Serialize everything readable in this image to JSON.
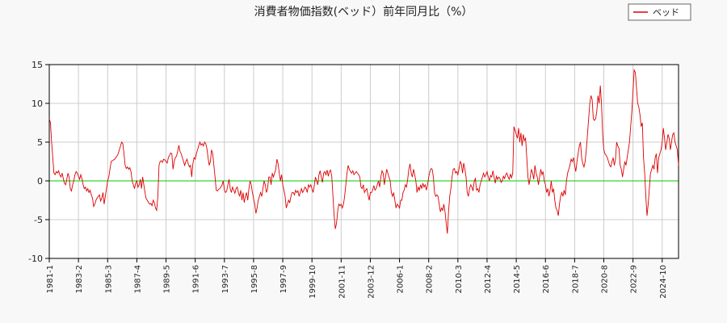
{
  "chart_data": {
    "type": "line",
    "title": "消費者物価指数(ベッド）前年同月比（%）",
    "x": [
      "1981-1",
      null,
      null,
      null,
      null,
      null,
      null,
      null,
      null,
      null,
      null,
      null,
      null,
      null,
      null,
      null,
      null,
      null,
      null,
      null,
      null,
      null,
      null,
      null,
      null,
      "1983-2",
      null,
      null,
      null,
      null,
      null,
      null,
      null,
      null,
      null,
      null,
      null,
      null,
      null,
      null,
      null,
      null,
      null,
      null,
      null,
      null,
      null,
      null,
      null,
      null,
      "1985-3",
      null,
      null,
      null,
      null,
      null,
      null,
      null,
      null,
      null,
      null,
      null,
      null,
      null,
      null,
      null,
      null,
      null,
      null,
      null,
      null,
      null,
      null,
      null,
      null,
      "1987-4",
      null,
      null,
      null,
      null,
      null,
      null,
      null,
      null,
      null,
      null,
      null,
      null,
      null,
      null,
      null,
      null,
      null,
      null,
      null,
      null,
      null,
      null,
      null,
      null,
      "1989-5",
      null,
      null,
      null,
      null,
      null,
      null,
      null,
      null,
      null,
      null,
      null,
      null,
      null,
      null,
      null,
      null,
      null,
      null,
      null,
      null,
      null,
      null,
      null,
      null,
      "1991-6",
      null,
      null,
      null,
      null,
      null,
      null,
      null,
      null,
      null,
      null,
      null,
      null,
      null,
      null,
      null,
      null,
      null,
      null,
      null,
      null,
      null,
      null,
      null,
      null,
      "1993-7",
      null,
      null,
      null,
      null,
      null,
      null,
      null,
      null,
      null,
      null,
      null,
      null,
      null,
      null,
      null,
      null,
      null,
      null,
      null,
      null,
      null,
      null,
      null,
      null,
      "1995-8",
      null,
      null,
      null,
      null,
      null,
      null,
      null,
      null,
      null,
      null,
      null,
      null,
      null,
      null,
      null,
      null,
      null,
      null,
      null,
      null,
      null,
      null,
      null,
      null,
      "1997-9",
      null,
      null,
      null,
      null,
      null,
      null,
      null,
      null,
      null,
      null,
      null,
      null,
      null,
      null,
      null,
      null,
      null,
      null,
      null,
      null,
      null,
      null,
      null,
      null,
      "1999-10",
      null,
      null,
      null,
      null,
      null,
      null,
      null,
      null,
      null,
      null,
      null,
      null,
      null,
      null,
      null,
      null,
      null,
      null,
      null,
      null,
      null,
      null,
      null,
      null,
      "2001-11",
      null,
      null,
      null,
      null,
      null,
      null,
      null,
      null,
      null,
      null,
      null,
      null,
      null,
      null,
      null,
      null,
      null,
      null,
      null,
      null,
      null,
      null,
      null,
      null,
      "2003-12",
      null,
      null,
      null,
      null,
      null,
      null,
      null,
      null,
      null,
      null,
      null,
      null,
      null,
      null,
      null,
      null,
      null,
      null,
      null,
      null,
      null,
      null,
      null,
      null,
      "2006-1",
      null,
      null,
      null,
      null,
      null,
      null,
      null,
      null,
      null,
      null,
      null,
      null,
      null,
      null,
      null,
      null,
      null,
      null,
      null,
      null,
      null,
      null,
      null,
      null,
      "2008-2",
      null,
      null,
      null,
      null,
      null,
      null,
      null,
      null,
      null,
      null,
      null,
      null,
      null,
      null,
      null,
      null,
      null,
      null,
      null,
      null,
      null,
      null,
      null,
      null,
      "2010-3",
      null,
      null,
      null,
      null,
      null,
      null,
      null,
      null,
      null,
      null,
      null,
      null,
      null,
      null,
      null,
      null,
      null,
      null,
      null,
      null,
      null,
      null,
      null,
      null,
      "2012-4",
      null,
      null,
      null,
      null,
      null,
      null,
      null,
      null,
      null,
      null,
      null,
      null,
      null,
      null,
      null,
      null,
      null,
      null,
      null,
      null,
      null,
      null,
      null,
      null,
      "2014-5",
      null,
      null,
      null,
      null,
      null,
      null,
      null,
      null,
      null,
      null,
      null,
      null,
      null,
      null,
      null,
      null,
      null,
      null,
      null,
      null,
      null,
      null,
      null,
      null,
      "2016-6",
      null,
      null,
      null,
      null,
      null,
      null,
      null,
      null,
      null,
      null,
      null,
      null,
      null,
      null,
      null,
      null,
      null,
      null,
      null,
      null,
      null,
      null,
      null,
      null,
      "2018-7",
      null,
      null,
      null,
      null,
      null,
      null,
      null,
      null,
      null,
      null,
      null,
      null,
      null,
      null,
      null,
      null,
      null,
      null,
      null,
      null,
      null,
      null,
      null,
      null,
      "2020-8",
      null,
      null,
      null,
      null,
      null,
      null,
      null,
      null,
      null,
      null,
      null,
      null,
      null,
      null,
      null,
      null,
      null,
      null,
      null,
      null,
      null,
      null,
      null,
      null,
      "2022-9",
      null,
      null,
      null,
      null,
      null,
      null,
      null,
      null,
      null,
      null,
      null,
      null,
      null,
      null,
      null,
      null,
      null,
      null,
      null,
      null,
      null,
      null,
      null,
      null,
      "2024-10",
      null,
      null,
      null,
      null,
      null,
      null,
      null,
      null,
      null,
      null,
      null,
      null,
      null,
      null
    ],
    "series": [
      {
        "name": "ベッド",
        "color": "#dd0000",
        "values": [
          8,
          7.5,
          5,
          3,
          1,
          0.8,
          1.2,
          1,
          1.3,
          0.8,
          0.5,
          1,
          0.3,
          -0.3,
          -0.5,
          0.2,
          1,
          0.5,
          -1,
          -1.3,
          -0.5,
          0,
          0.8,
          1.2,
          1,
          0.6,
          0.2,
          0.8,
          0.3,
          -0.5,
          -1,
          -0.8,
          -1.3,
          -1,
          -1.5,
          -1.2,
          -1.8,
          -2.2,
          -3.3,
          -3,
          -2.5,
          -2.2,
          -2,
          -1.8,
          -2.6,
          -2.2,
          -1.5,
          -3,
          -2,
          -1,
          0,
          0.5,
          1.5,
          2.5,
          2.6,
          2.7,
          2.8,
          3,
          3.2,
          3.5,
          4,
          4.5,
          5,
          4.8,
          3.5,
          2,
          1.6,
          1.8,
          1.5,
          1.7,
          1.2,
          0,
          -0.5,
          -1,
          -0.3,
          0,
          -0.8,
          -0.5,
          0.2,
          -1,
          0.5,
          -0.5,
          -1.5,
          -2.3,
          -2.5,
          -2.8,
          -3,
          -2.9,
          -3.2,
          -2.5,
          -2.8,
          -3.5,
          -3.8,
          -2,
          2,
          2.5,
          2.6,
          2.4,
          2.8,
          2.7,
          2.5,
          2.3,
          3,
          3.3,
          3.6,
          3.5,
          1.5,
          2.5,
          3,
          3.2,
          3.8,
          4.6,
          3.8,
          3.5,
          3,
          2.5,
          2,
          2.5,
          2.8,
          2.2,
          1.8,
          2,
          0.5,
          2.2,
          3,
          2.8,
          3.5,
          4,
          4.5,
          5,
          4.6,
          4.8,
          4.5,
          5,
          4.8,
          4.2,
          3,
          2,
          2.5,
          4,
          3.5,
          2,
          0.5,
          -1.2,
          -1.3,
          -1.1,
          -1,
          -0.8,
          -0.5,
          0,
          -1.2,
          -1.5,
          -1.3,
          -0.5,
          0.2,
          -1,
          -1.5,
          -0.8,
          -1.2,
          -1.6,
          -1,
          -0.8,
          -1.5,
          -2,
          -1.2,
          -2.5,
          -1.5,
          -2.8,
          -2,
          -1.5,
          -2.5,
          -1,
          0,
          -0.5,
          -1.5,
          -2.3,
          -3,
          -4.2,
          -3.5,
          -2.5,
          -2,
          -1.5,
          -2,
          -1,
          0,
          -0.5,
          -1.5,
          -1,
          0.5,
          0.5,
          -0.5,
          1,
          0.5,
          1,
          1.5,
          2.8,
          2.2,
          1,
          0,
          0.8,
          -0.5,
          -1.2,
          -2,
          -3.5,
          -3,
          -2.5,
          -2.8,
          -2,
          -1.5,
          -1.5,
          -1.8,
          -1.2,
          -1.5,
          -1.3,
          -2,
          -1.5,
          -1,
          -1.5,
          -1.2,
          -0.8,
          -1,
          -1.5,
          -0.5,
          -0.8,
          -0.5,
          -1,
          -1.5,
          -0.6,
          0.5,
          0,
          -0.5,
          0.8,
          1.3,
          0.5,
          -0.2,
          1,
          1.2,
          0.8,
          1.4,
          0.6,
          1.2,
          1.4,
          0.5,
          -2,
          -4.5,
          -6.2,
          -5.5,
          -4,
          -3,
          -3.2,
          -3,
          -3.5,
          -3,
          -2,
          -0.5,
          1,
          2,
          1.5,
          1.2,
          1,
          1.3,
          0.8,
          1,
          1.2,
          1,
          0.8,
          0.5,
          -0.8,
          -1,
          -0.5,
          -1.5,
          -1.2,
          -1,
          -1.8,
          -2.5,
          -1.5,
          -1.5,
          -1.2,
          -0.6,
          -1.2,
          -1,
          -0.5,
          0,
          -0.8,
          0.5,
          1.3,
          1,
          -0.5,
          0.5,
          1.5,
          1,
          0.5,
          0,
          -1.5,
          -2,
          -1.5,
          -2.5,
          -3.5,
          -3,
          -3.2,
          -3.5,
          -2.5,
          -2.5,
          -1.5,
          -1.2,
          -0.5,
          -0.8,
          0.2,
          1.5,
          2.2,
          1,
          0.5,
          1.5,
          0.8,
          0,
          -1.5,
          -0.8,
          -1.2,
          -0.5,
          -1,
          -0.3,
          -0.8,
          -0.5,
          -1.2,
          -0.5,
          0.5,
          1.2,
          1.6,
          1.5,
          0.5,
          -1.5,
          -2,
          -1.8,
          -2,
          -3,
          -4,
          -3.5,
          -3.8,
          -3,
          -4,
          -5.5,
          -6.8,
          -4,
          -2,
          -1,
          0.5,
          1.5,
          1.6,
          1,
          1.2,
          0.8,
          1.6,
          2.5,
          2.2,
          1,
          2.3,
          1.5,
          0.5,
          -1.5,
          -2,
          -1,
          -0.5,
          -0.8,
          -1.3,
          0,
          0.3,
          -1.2,
          -1,
          -1.5,
          -0.5,
          0,
          0.5,
          1,
          0.5,
          0.8,
          1.2,
          0.5,
          0,
          0.7,
          0.5,
          1.3,
          0.5,
          -0.3,
          0.6,
          0.2,
          0.5,
          0.3,
          -0.2,
          0,
          0.6,
          0.3,
          0.8,
          1,
          0.5,
          0.2,
          0.9,
          0.4,
          1,
          7,
          6.5,
          6,
          5.5,
          6.8,
          5,
          6.2,
          4.5,
          6,
          5.2,
          5.5,
          3,
          0.5,
          -0.5,
          0.5,
          1.5,
          1,
          0.2,
          2,
          1,
          0.5,
          -0.5,
          0.5,
          1.5,
          0.8,
          1.2,
          0,
          -0.5,
          -1.5,
          -1,
          -2,
          -1.2,
          0,
          -1.5,
          -1,
          -2.5,
          -3.5,
          -3.8,
          -4.5,
          -3,
          -2,
          -1.5,
          -2,
          -1.2,
          -1.8,
          0,
          1,
          1.5,
          2,
          2.8,
          2.5,
          3,
          2,
          1.2,
          2.5,
          3.5,
          4.5,
          5,
          3,
          2.2,
          1.8,
          2.5,
          4,
          6,
          8,
          10,
          11,
          10.5,
          8,
          7.8,
          8,
          9,
          11,
          10,
          12.3,
          10,
          6,
          4,
          3.5,
          3.3,
          3,
          2.5,
          2,
          1.8,
          2.5,
          3,
          2,
          2.8,
          5,
          4.5,
          4.2,
          2,
          1.5,
          0.5,
          1.5,
          2.5,
          2,
          3,
          4,
          5,
          7,
          9,
          11.5,
          14.3,
          14,
          12,
          10,
          9.5,
          8.5,
          7,
          7.5,
          3,
          1,
          -2,
          -4.5,
          -3,
          -1,
          1,
          1.5,
          2,
          1.5,
          3,
          3.5,
          1,
          3,
          3.5,
          4,
          5,
          6.8,
          5.5,
          4,
          5,
          6,
          5.5,
          4,
          5,
          6,
          6.2,
          5,
          4.5,
          4,
          2
        ]
      }
    ],
    "ylim": [
      -10,
      15
    ],
    "yticks": [
      -10,
      -5,
      0,
      5,
      10,
      15
    ],
    "grid": true,
    "zero_line_color": "#00cc00",
    "legend": "upper right"
  }
}
